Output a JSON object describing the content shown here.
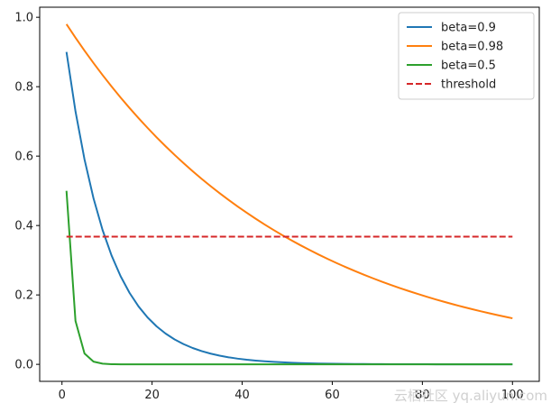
{
  "chart_data": {
    "type": "line",
    "title": "",
    "xlabel": "",
    "ylabel": "",
    "xlim": [
      -4.95,
      105.95
    ],
    "ylim": [
      -0.049,
      1.029
    ],
    "xticks": [
      0,
      20,
      40,
      60,
      80,
      100
    ],
    "yticks": [
      0.0,
      0.2,
      0.4,
      0.6,
      0.8,
      1.0
    ],
    "xtick_labels": [
      "0",
      "20",
      "40",
      "60",
      "80",
      "100"
    ],
    "ytick_labels": [
      "0.0",
      "0.2",
      "0.4",
      "0.6",
      "0.8",
      "1.0"
    ],
    "grid": false,
    "legend_position": "top-right",
    "x_start": 1,
    "x_end": 100,
    "x_step": 2,
    "series": [
      {
        "name": "beta=0.9",
        "beta": 0.9,
        "formula": "beta^x",
        "color": "#1f77b4",
        "dash": "solid"
      },
      {
        "name": "beta=0.98",
        "beta": 0.98,
        "formula": "beta^x",
        "color": "#ff7f0e",
        "dash": "solid"
      },
      {
        "name": "beta=0.5",
        "beta": 0.5,
        "formula": "beta^x",
        "color": "#2ca02c",
        "dash": "solid"
      },
      {
        "name": "threshold",
        "constant": 0.3679,
        "color": "#d62728",
        "dash": "dashed"
      }
    ]
  },
  "watermark": "云栖社区 yq.aliyun.com"
}
